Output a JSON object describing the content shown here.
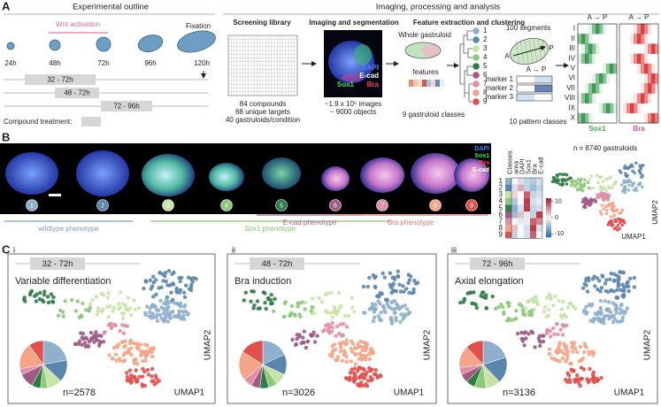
{
  "panel_a": {
    "label": "A",
    "outline": {
      "title": "Experimental outline",
      "wnt": "Wnt activation",
      "fixation": "Fixation",
      "times": [
        "24h",
        "48h",
        "72h",
        "96h",
        "120h"
      ],
      "windows": [
        "32 - 72h",
        "48 - 72h",
        "72 - 96h"
      ],
      "compound": "Compound treatment:"
    },
    "analysis": {
      "title": "Imaging, processing and analysis",
      "library": {
        "title": "Screening library",
        "lines": [
          "84 compounds",
          "68 unique targets",
          "40 gastruloids/condition"
        ]
      },
      "imaging": {
        "title": "Imaging and segmentation",
        "channels": [
          "DAPI",
          "E-cad",
          "Sox1",
          "Bra"
        ],
        "lines": [
          "~1.9 x 10⁵ images",
          "~ 9000 objects"
        ]
      },
      "features": {
        "title": "Feature extraction and clustering",
        "whole": "Whole gastruloid",
        "features": "features",
        "classes_caption": "9 gastruloid classes",
        "segments": "100 segments",
        "axis_a": "A",
        "axis_p": "P",
        "ap": "A → P",
        "markers": [
          "marker 1",
          "marker 2",
          "marker 3"
        ],
        "pattern_caption": "10 pattern classes",
        "pattern_classes": [
          "I",
          "II",
          "III",
          "IV",
          "V",
          "VI",
          "VII",
          "VIII",
          "IX",
          "X"
        ],
        "heatmap_titles": [
          "A → P",
          "A → P"
        ],
        "heatmap_markers": [
          "Sox1",
          "Bra"
        ]
      }
    }
  },
  "classes": [
    {
      "label": "1",
      "color": "#8fb0cc"
    },
    {
      "label": "2",
      "color": "#5a86ae"
    },
    {
      "label": "3",
      "color": "#c6e4a6"
    },
    {
      "label": "4",
      "color": "#8ec97a"
    },
    {
      "label": "5",
      "color": "#2f7d45"
    },
    {
      "label": "6",
      "color": "#a05a84"
    },
    {
      "label": "7",
      "color": "#e08ea6"
    },
    {
      "label": "8",
      "color": "#f4a487"
    },
    {
      "label": "9",
      "color": "#e2504c"
    }
  ],
  "panel_b": {
    "label": "B",
    "channels": [
      "DAPI",
      "Sox1",
      "Bra",
      "E-cad"
    ],
    "phenotypes": [
      "wildtype phenotype",
      "Sox1 phenotype",
      "E-cad phenotype",
      "Bra phenotype"
    ],
    "heatmap": {
      "columns": [
        "Classes",
        "area",
        "DAPI",
        "Sox1",
        "Bra",
        "E-cad"
      ],
      "values": [
        [
          0,
          -2,
          -3,
          -4,
          -2
        ],
        [
          -2,
          4,
          -3,
          -5,
          -3
        ],
        [
          2,
          0,
          8,
          -3,
          -2
        ],
        [
          -4,
          0,
          10,
          -2,
          -1
        ],
        [
          -6,
          -2,
          10,
          -3,
          -2
        ],
        [
          -5,
          3,
          -1,
          -3,
          10
        ],
        [
          0,
          -1,
          -1,
          8,
          6
        ],
        [
          3,
          0,
          -2,
          10,
          -2
        ],
        [
          -3,
          0,
          -2,
          8,
          0
        ]
      ],
      "colorbar_lim": [
        -12,
        12
      ],
      "colorbar_ticks": [
        10,
        0,
        -10
      ]
    },
    "umap": {
      "n": "n = 8740 gastruloids",
      "x_label": "UMAP1",
      "y_label": "UMAP2"
    }
  },
  "panel_c": {
    "label": "C",
    "panels": [
      {
        "numeral": "i",
        "window": "32 - 72h",
        "title": "Variable differentiation",
        "n": "n=2578",
        "x_label": "UMAP1",
        "y_label": "UMAP2",
        "pie": [
          22,
          15,
          10,
          5,
          6,
          10,
          4,
          18,
          10
        ]
      },
      {
        "numeral": "ii",
        "window": "48 - 72h",
        "title": "Bra induction",
        "n": "n=3026",
        "x_label": "UMAP1",
        "y_label": "UMAP2",
        "pie": [
          18,
          14,
          8,
          6,
          6,
          6,
          6,
          20,
          16
        ]
      },
      {
        "numeral": "iii",
        "window": "72 - 96h",
        "title": "Axial elongation",
        "n": "n=3136",
        "x_label": "UMAP1",
        "y_label": "UMAP2",
        "pie": [
          20,
          18,
          10,
          8,
          6,
          6,
          5,
          15,
          12
        ]
      }
    ]
  }
}
